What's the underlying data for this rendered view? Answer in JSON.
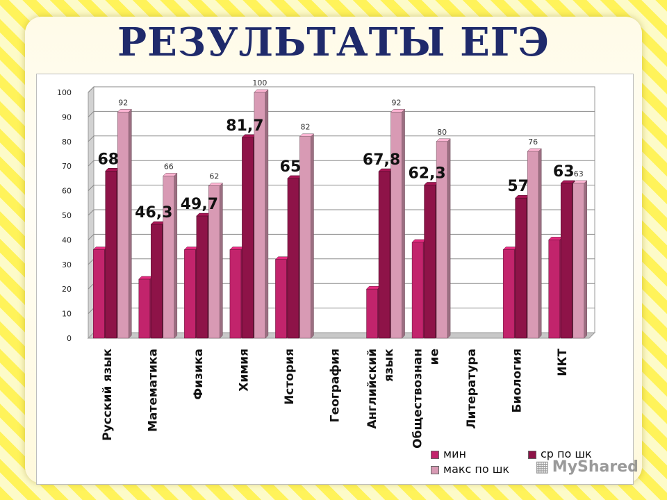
{
  "title": "РЕЗУЛЬТАТЫ  ЕГЭ",
  "chart_data": {
    "type": "bar",
    "categories": [
      "Русский язык",
      "Математика",
      "Физика",
      "Химия",
      "История",
      "География",
      "Английский язык",
      "Обществознание",
      "Литература",
      "Биология",
      "ИКТ"
    ],
    "category_labels": [
      [
        "Русский язык"
      ],
      [
        "Математика"
      ],
      [
        "Физика"
      ],
      [
        "Химия"
      ],
      [
        "История"
      ],
      [
        "География"
      ],
      [
        "Английский",
        "язык"
      ],
      [
        "Обществознан",
        "ие"
      ],
      [
        "Литература"
      ],
      [
        "Биология"
      ],
      [
        "ИКТ"
      ]
    ],
    "series": [
      {
        "name": "мин",
        "color": "#c2246c",
        "values": [
          36,
          24,
          36,
          36,
          32,
          null,
          20,
          39,
          null,
          36,
          40
        ]
      },
      {
        "name": "ср по шк",
        "color": "#8e1348",
        "values": [
          68,
          46.3,
          49.7,
          81.7,
          65,
          null,
          67.8,
          62.3,
          null,
          57,
          63
        ],
        "labels": [
          "68",
          "46,3",
          "49,7",
          "81,7",
          "65",
          "",
          "67,8",
          "62,3",
          "",
          "57",
          "63"
        ]
      },
      {
        "name": "макс по шк",
        "color": "#d89ab4",
        "values": [
          92,
          66,
          62,
          100,
          82,
          null,
          92,
          80,
          null,
          76,
          63
        ],
        "labels": [
          "92",
          "66",
          "62",
          "100",
          "82",
          "",
          "92",
          "80",
          "",
          "76",
          "63"
        ]
      }
    ],
    "ylim": [
      0,
      100
    ],
    "yticks": [
      "0",
      "10",
      "20",
      "30",
      "40",
      "50",
      "60",
      "70",
      "80",
      "90",
      "100"
    ],
    "grid": true,
    "legend": "bottom-right"
  },
  "watermark": "MyShared"
}
